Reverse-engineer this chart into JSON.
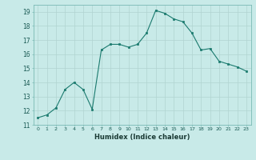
{
  "x": [
    0,
    1,
    2,
    3,
    4,
    5,
    6,
    7,
    8,
    9,
    10,
    11,
    12,
    13,
    14,
    15,
    16,
    17,
    18,
    19,
    20,
    21,
    22,
    23
  ],
  "y": [
    11.5,
    11.7,
    12.2,
    13.5,
    14.0,
    13.5,
    12.1,
    16.3,
    16.7,
    16.7,
    16.5,
    16.7,
    17.5,
    19.1,
    18.9,
    18.5,
    18.3,
    17.5,
    16.3,
    16.4,
    15.5,
    15.3,
    15.1,
    14.8
  ],
  "line_color": "#1a7a6e",
  "marker_color": "#1a7a6e",
  "bg_color": "#c8eae8",
  "grid_color": "#b0d4d0",
  "xlabel": "Humidex (Indice chaleur)",
  "xlim": [
    -0.5,
    23.5
  ],
  "ylim": [
    11,
    19.5
  ],
  "yticks": [
    11,
    12,
    13,
    14,
    15,
    16,
    17,
    18,
    19
  ],
  "xticks": [
    0,
    1,
    2,
    3,
    4,
    5,
    6,
    7,
    8,
    9,
    10,
    11,
    12,
    13,
    14,
    15,
    16,
    17,
    18,
    19,
    20,
    21,
    22,
    23
  ],
  "xtick_labels": [
    "0",
    "1",
    "2",
    "3",
    "4",
    "5",
    "6",
    "7",
    "8",
    "9",
    "10",
    "11",
    "12",
    "13",
    "14",
    "15",
    "16",
    "17",
    "18",
    "19",
    "20",
    "21",
    "22",
    "23"
  ],
  "figsize": [
    3.2,
    2.0
  ],
  "dpi": 100
}
